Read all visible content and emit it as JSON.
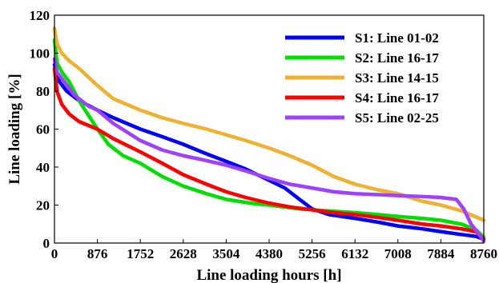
{
  "chart_data": {
    "type": "line",
    "xlabel": "Line loading hours [h]",
    "ylabel": "Line loading [%]",
    "xlim": [
      0,
      8760
    ],
    "ylim": [
      0,
      120
    ],
    "xticks": [
      0,
      876,
      1752,
      2628,
      3504,
      4380,
      5256,
      6132,
      7008,
      7884,
      8760
    ],
    "yticks": [
      0,
      20,
      40,
      60,
      80,
      100,
      120
    ],
    "grid": false,
    "legend_position": "top-right",
    "series": [
      {
        "name": "S1: Line 01-02",
        "color": "#0000ff",
        "x": [
          0,
          100,
          250,
          500,
          876,
          1200,
          1752,
          2200,
          2628,
          3100,
          3504,
          3900,
          4380,
          4700,
          5000,
          5256,
          5600,
          6132,
          6600,
          7008,
          7500,
          7884,
          8300,
          8600,
          8760
        ],
        "y": [
          94,
          85,
          80,
          75,
          70,
          66,
          60,
          56,
          52,
          47,
          43,
          39,
          33,
          29,
          23,
          18,
          15,
          13,
          11,
          9,
          7.5,
          6,
          4.5,
          3.5,
          2
        ]
      },
      {
        "name": "S2: Line 16-17",
        "color": "#00e000",
        "x": [
          0,
          50,
          150,
          300,
          500,
          876,
          1100,
          1400,
          1752,
          2200,
          2628,
          3100,
          3504,
          4000,
          4380,
          5000,
          5256,
          6132,
          6600,
          7008,
          7500,
          7884,
          8300,
          8600,
          8760
        ],
        "y": [
          107,
          95,
          90,
          85,
          75,
          60,
          52,
          46,
          42,
          35,
          30,
          26,
          23,
          21,
          20,
          18,
          17.5,
          16,
          15,
          14,
          13,
          12,
          10,
          7,
          3
        ]
      },
      {
        "name": "S3: Line 14-15",
        "color": "#f0b030",
        "x": [
          0,
          50,
          150,
          300,
          500,
          876,
          1200,
          1752,
          2200,
          2628,
          3100,
          3504,
          3900,
          4380,
          4800,
          5256,
          5700,
          6132,
          6600,
          7008,
          7500,
          7884,
          8300,
          8760
        ],
        "y": [
          113,
          105,
          100,
          96,
          92,
          83,
          76,
          70,
          66,
          63,
          60,
          57,
          54,
          50,
          46,
          41,
          35,
          31,
          28,
          26,
          22,
          20,
          17,
          12
        ]
      },
      {
        "name": "S4: Line 16-17",
        "color": "#ff0000",
        "x": [
          0,
          50,
          150,
          300,
          500,
          876,
          1200,
          1752,
          2200,
          2628,
          3100,
          3504,
          3900,
          4380,
          4800,
          5256,
          5700,
          6132,
          6600,
          7008,
          7500,
          7884,
          8300,
          8600,
          8760
        ],
        "y": [
          92,
          80,
          73,
          68,
          64,
          60,
          55,
          48,
          42,
          36,
          31,
          27,
          24,
          21,
          19,
          17.5,
          16,
          15,
          13.5,
          12,
          10,
          9,
          7.5,
          6,
          2
        ]
      },
      {
        "name": "S5: Line 02-25",
        "color": "#a040ff",
        "x": [
          0,
          50,
          200,
          400,
          700,
          876,
          1200,
          1752,
          2200,
          2628,
          3000,
          3504,
          3900,
          4380,
          4800,
          5256,
          5700,
          6132,
          6600,
          7008,
          7500,
          7884,
          8200,
          8350,
          8500,
          8650,
          8760
        ],
        "y": [
          97,
          90,
          85,
          78,
          72,
          70,
          63,
          54,
          49,
          46,
          44,
          41,
          38,
          34,
          31,
          29,
          27,
          26,
          25.5,
          25,
          24.5,
          24,
          23,
          18,
          10,
          5,
          1
        ]
      }
    ]
  }
}
